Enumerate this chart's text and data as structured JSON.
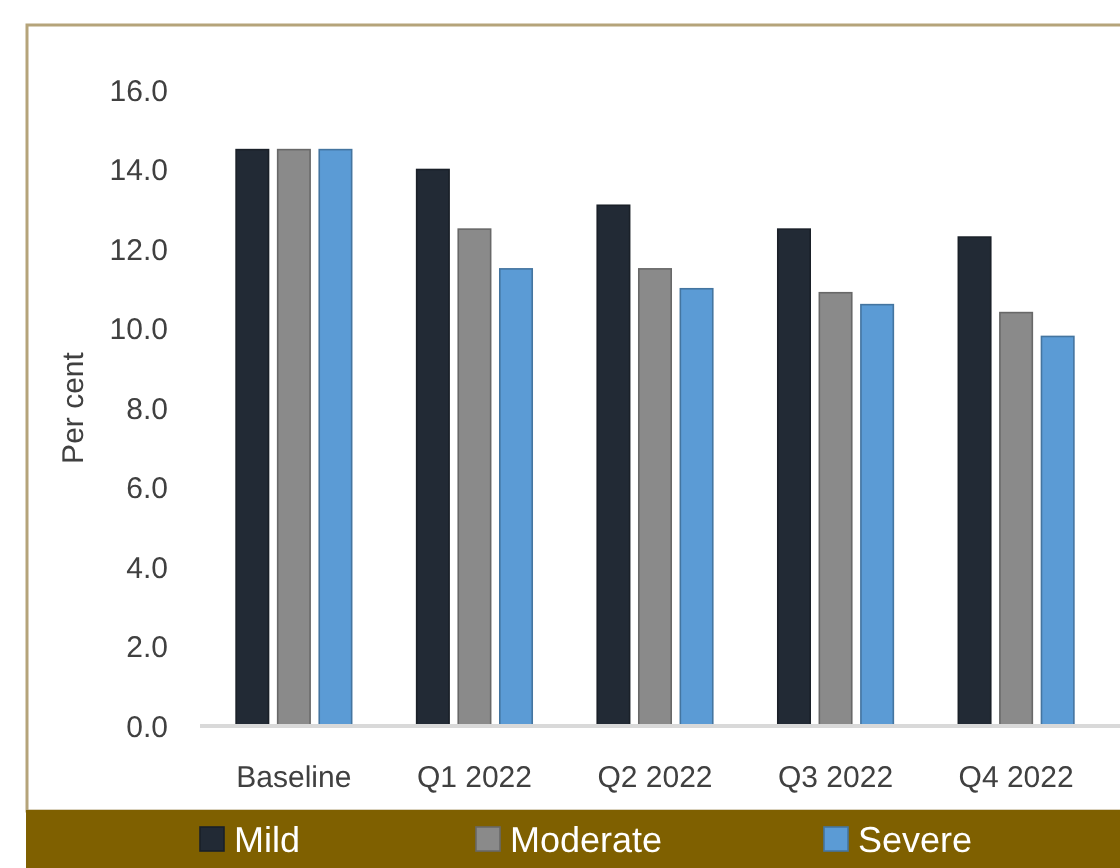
{
  "chart_data": {
    "type": "bar",
    "ylabel": "Per cent",
    "categories": [
      "Baseline",
      "Q1 2022",
      "Q2 2022",
      "Q3 2022",
      "Q4 2022"
    ],
    "series": [
      {
        "name": "Mild",
        "color": "#222a35",
        "values": [
          14.5,
          14.0,
          13.1,
          12.5,
          12.3
        ]
      },
      {
        "name": "Moderate",
        "color": "#8a8a8a",
        "values": [
          14.5,
          12.5,
          11.5,
          10.9,
          10.4
        ]
      },
      {
        "name": "Severe",
        "color": "#5b9bd5",
        "values": [
          14.5,
          11.5,
          11.0,
          10.6,
          9.8
        ]
      }
    ],
    "ylim": [
      0,
      16
    ],
    "yticks": [
      {
        "value": 0,
        "label": "0.0"
      },
      {
        "value": 2,
        "label": "2.0"
      },
      {
        "value": 4,
        "label": "4.0"
      },
      {
        "value": 6,
        "label": "6.0"
      },
      {
        "value": 8,
        "label": "8.0"
      },
      {
        "value": 10,
        "label": "10.0"
      },
      {
        "value": 12,
        "label": "12.0"
      },
      {
        "value": 14,
        "label": "14.0"
      },
      {
        "value": 16,
        "label": "16.0"
      }
    ],
    "legend": "bottom"
  }
}
